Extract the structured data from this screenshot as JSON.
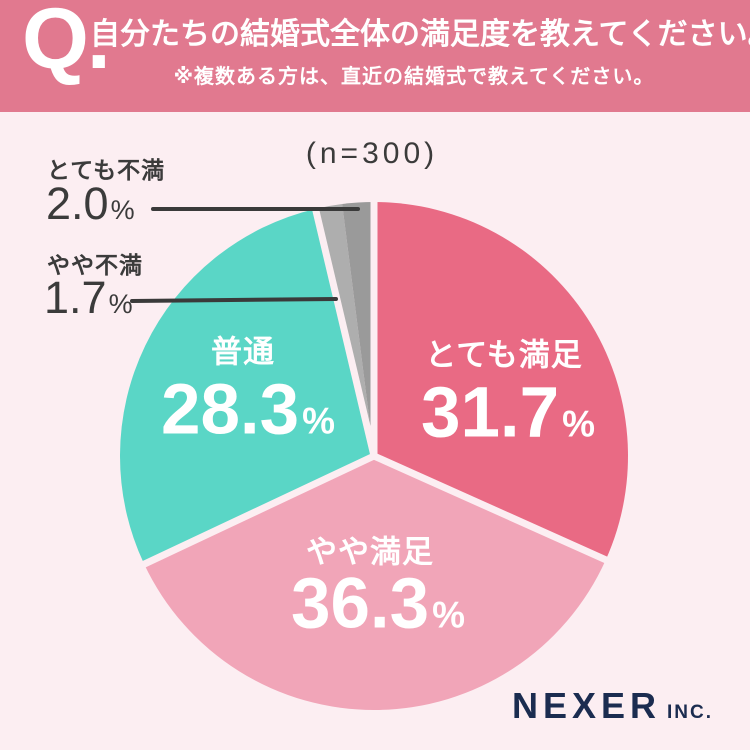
{
  "header": {
    "q_label": "Q.",
    "title": "自分たちの結婚式全体の満足度を教えてください。",
    "subtitle": "※複数ある方は、直近の結婚式で教えてください。",
    "bg_color": "#e1798f",
    "text_color": "#ffffff"
  },
  "sample_label": "(n=300)",
  "chart_data": {
    "type": "pie",
    "title": "自分たちの結婚式全体の満足度",
    "sample_size": 300,
    "unit": "%",
    "percent_sign": "%",
    "start_angle_deg": 0,
    "direction": "clockwise",
    "legend_position": "labels-on-chart",
    "separator_color": "#fceef2",
    "slices": [
      {
        "label": "とても満足",
        "value": "31.7",
        "color": "#e96a84",
        "label_placement": "inside",
        "separator_before": true
      },
      {
        "label": "やや満足",
        "value": "36.3",
        "color": "#f1a5b8",
        "label_placement": "inside",
        "separator_before": true
      },
      {
        "label": "普通",
        "value": "28.3",
        "color": "#5ad6c6",
        "label_placement": "inside",
        "separator_before": true
      },
      {
        "label": "やや不満",
        "value": "1.7",
        "color": "#aeaeae",
        "label_placement": "outside",
        "separator_before": true
      },
      {
        "label": "とても不満",
        "value": "2.0",
        "color": "#9a9a9a",
        "label_placement": "outside",
        "separator_before": false
      }
    ]
  },
  "footer": {
    "brand": "NEXER",
    "brand_suffix": "INC.",
    "color": "#1b2c50"
  },
  "colors": {
    "background": "#fceef2",
    "text_dark": "#3b3b3b",
    "leader_line": "#3a3a3a"
  }
}
